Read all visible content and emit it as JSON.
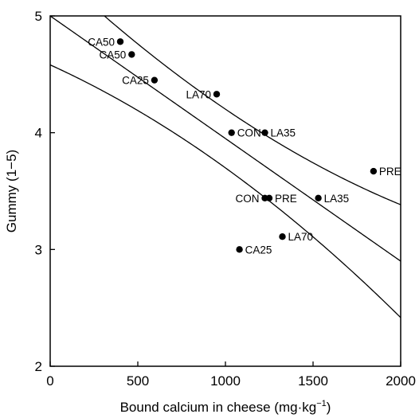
{
  "chart_data": {
    "type": "scatter",
    "xlabel": "Bound calcium in cheese (mg·kg",
    "xlabel_sup": "−1",
    "xlabel_close": ")",
    "ylabel": "Gummy (1−5)",
    "xlim": [
      0,
      2000
    ],
    "ylim": [
      2,
      5
    ],
    "xticks": [
      0,
      500,
      1000,
      1500,
      2000
    ],
    "yticks": [
      2,
      3,
      4,
      5
    ],
    "grid": false,
    "points": [
      {
        "x": 400,
        "y": 4.78,
        "label": "CA50",
        "label_side": "left"
      },
      {
        "x": 465,
        "y": 4.67,
        "label": "CA50",
        "label_side": "left"
      },
      {
        "x": 595,
        "y": 4.45,
        "label": "CA25",
        "label_side": "left"
      },
      {
        "x": 950,
        "y": 4.33,
        "label": "LA70",
        "label_side": "left"
      },
      {
        "x": 1035,
        "y": 4.0,
        "label": "CON",
        "label_side": "right"
      },
      {
        "x": 1225,
        "y": 4.0,
        "label": "LA35",
        "label_side": "right"
      },
      {
        "x": 1845,
        "y": 3.67,
        "label": "PRE",
        "label_side": "right"
      },
      {
        "x": 1225,
        "y": 3.44,
        "label": "CON",
        "label_side": "left"
      },
      {
        "x": 1250,
        "y": 3.44,
        "label": "PRE",
        "label_side": "right"
      },
      {
        "x": 1530,
        "y": 3.44,
        "label": "LA35",
        "label_side": "right"
      },
      {
        "x": 1325,
        "y": 3.11,
        "label": "LA70",
        "label_side": "right"
      },
      {
        "x": 1080,
        "y": 3.0,
        "label": "CA25",
        "label_side": "right"
      }
    ],
    "regression_line": {
      "intercept": 5.0,
      "slope": -0.00105
    },
    "confidence_band": {
      "center_x": 920,
      "intercept": 5.0,
      "slope": -0.00105,
      "scale": 0.2,
      "spread": 0.25
    }
  }
}
